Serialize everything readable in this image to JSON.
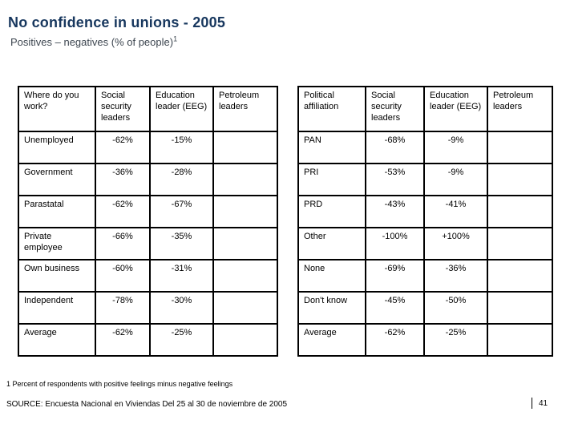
{
  "slide": {
    "title": "No confidence in unions - 2005",
    "subtitle_main": "Positives – negatives (% of people)",
    "subtitle_superscript": "1",
    "footnote": "1 Percent of respondents with positive feelings minus negative feelings",
    "source": "SOURCE: Encuesta Nacional en Viviendas Del 25 al 30 de noviembre de 2005",
    "page_number": "41"
  },
  "colors": {
    "title": "#17375e",
    "subtitle": "#3d4650",
    "text": "#000000",
    "border": "#000000",
    "background": "#ffffff"
  },
  "tables": [
    {
      "id": "work",
      "headers": [
        "Where do you work?",
        "Social security leaders",
        "Education leader (EEG)",
        "Petroleum leaders"
      ],
      "rows": [
        {
          "label": "Unemployed",
          "values": [
            "-62%",
            "-15%",
            ""
          ]
        },
        {
          "label": "Government",
          "values": [
            "-36%",
            "-28%",
            ""
          ]
        },
        {
          "label": "Parastatal",
          "values": [
            "-62%",
            "-67%",
            ""
          ]
        },
        {
          "label": "Private employee",
          "values": [
            "-66%",
            "-35%",
            ""
          ]
        },
        {
          "label": "Own business",
          "values": [
            "-60%",
            "-31%",
            ""
          ]
        },
        {
          "label": "Independent",
          "values": [
            "-78%",
            "-30%",
            ""
          ]
        },
        {
          "label": "Average",
          "values": [
            "-62%",
            "-25%",
            ""
          ]
        }
      ]
    },
    {
      "id": "political",
      "headers": [
        "Political affiliation",
        "Social security leaders",
        "Education leader (EEG)",
        "Petroleum leaders"
      ],
      "rows": [
        {
          "label": "PAN",
          "values": [
            "-68%",
            "-9%",
            ""
          ]
        },
        {
          "label": "PRI",
          "values": [
            "-53%",
            "-9%",
            ""
          ]
        },
        {
          "label": "PRD",
          "values": [
            "-43%",
            "-41%",
            ""
          ]
        },
        {
          "label": "Other",
          "values": [
            "-100%",
            "+100%",
            ""
          ]
        },
        {
          "label": "None",
          "values": [
            "-69%",
            "-36%",
            ""
          ]
        },
        {
          "label": "Don't know",
          "values": [
            "-45%",
            "-50%",
            ""
          ]
        },
        {
          "label": "Average",
          "values": [
            "-62%",
            "-25%",
            ""
          ]
        }
      ]
    }
  ]
}
